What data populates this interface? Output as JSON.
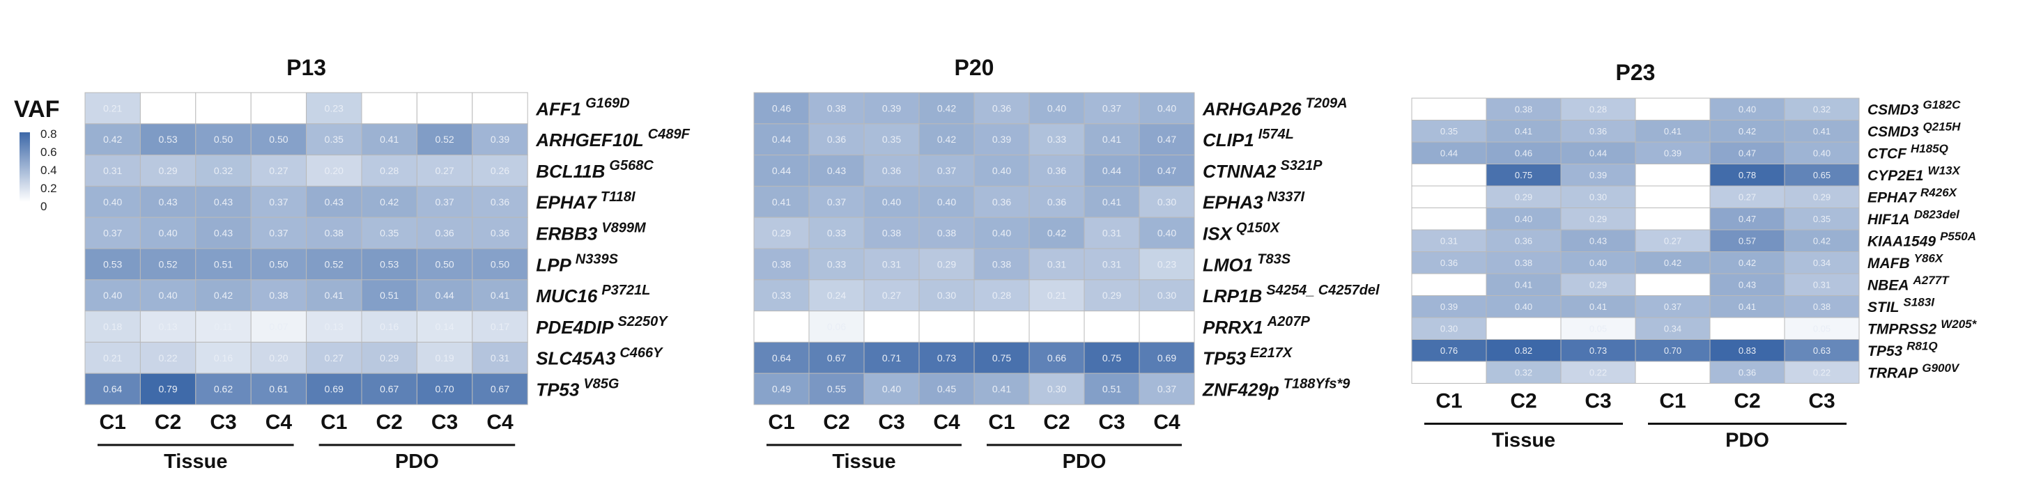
{
  "colors": {
    "low": "#ffffff",
    "high": "#3d68a8",
    "grid": "#b9b9b9",
    "text_on_light": "#e9eef6",
    "bracket": "#111111"
  },
  "legend": {
    "title": "VAF",
    "ticks": [
      "0.8",
      "0.6",
      "0.4",
      "0.2",
      "0"
    ]
  },
  "chart_data": [
    {
      "type": "heatmap",
      "title": "P13",
      "columns": [
        "C1",
        "C2",
        "C3",
        "C4",
        "C1",
        "C2",
        "C3",
        "C4"
      ],
      "groups": [
        {
          "label": "Tissue",
          "span": [
            0,
            3
          ]
        },
        {
          "label": "PDO",
          "span": [
            4,
            7
          ]
        }
      ],
      "rows": [
        {
          "gene": "AFF1",
          "mutation": "G169D",
          "values": [
            0.21,
            null,
            null,
            null,
            0.23,
            null,
            null,
            null
          ]
        },
        {
          "gene": "ARHGEF10L",
          "mutation": "C489F",
          "values": [
            0.42,
            0.53,
            0.5,
            0.5,
            0.35,
            0.41,
            0.52,
            0.39
          ]
        },
        {
          "gene": "BCL11B",
          "mutation": "G568C",
          "values": [
            0.31,
            0.29,
            0.32,
            0.27,
            0.2,
            0.28,
            0.27,
            0.26
          ]
        },
        {
          "gene": "EPHA7",
          "mutation": "T118I",
          "values": [
            0.4,
            0.43,
            0.43,
            0.37,
            0.43,
            0.42,
            0.37,
            0.36
          ]
        },
        {
          "gene": "ERBB3",
          "mutation": "V899M",
          "values": [
            0.37,
            0.4,
            0.43,
            0.37,
            0.38,
            0.35,
            0.36,
            0.36
          ]
        },
        {
          "gene": "LPP",
          "mutation": "N339S",
          "values": [
            0.53,
            0.52,
            0.51,
            0.5,
            0.52,
            0.53,
            0.5,
            0.5
          ]
        },
        {
          "gene": "MUC16",
          "mutation": "P3721L",
          "values": [
            0.4,
            0.4,
            0.42,
            0.38,
            0.41,
            0.51,
            0.44,
            0.41
          ]
        },
        {
          "gene": "PDE4DIP",
          "mutation": "S2250Y",
          "values": [
            0.18,
            0.13,
            0.11,
            0.07,
            0.13,
            0.16,
            0.14,
            0.17
          ]
        },
        {
          "gene": "SLC45A3",
          "mutation": "C466Y",
          "values": [
            0.21,
            0.22,
            0.16,
            0.2,
            0.27,
            0.29,
            0.19,
            0.31
          ]
        },
        {
          "gene": "TP53",
          "mutation": "V85G",
          "values": [
            0.64,
            0.79,
            0.62,
            0.61,
            0.69,
            0.67,
            0.7,
            0.67
          ]
        }
      ]
    },
    {
      "type": "heatmap",
      "title": "P20",
      "columns": [
        "C1",
        "C2",
        "C3",
        "C4",
        "C1",
        "C2",
        "C3",
        "C4"
      ],
      "groups": [
        {
          "label": "Tissue",
          "span": [
            0,
            3
          ]
        },
        {
          "label": "PDO",
          "span": [
            4,
            7
          ]
        }
      ],
      "rows": [
        {
          "gene": "ARHGAP26",
          "mutation": "T209A",
          "values": [
            0.46,
            0.38,
            0.39,
            0.42,
            0.36,
            0.4,
            0.37,
            0.4
          ]
        },
        {
          "gene": "CLIP1",
          "mutation": "I574L",
          "values": [
            0.44,
            0.36,
            0.35,
            0.42,
            0.39,
            0.33,
            0.41,
            0.47
          ]
        },
        {
          "gene": "CTNNA2",
          "mutation": "S321P",
          "values": [
            0.44,
            0.43,
            0.36,
            0.37,
            0.4,
            0.36,
            0.44,
            0.47
          ]
        },
        {
          "gene": "EPHA3",
          "mutation": "N337I",
          "values": [
            0.41,
            0.37,
            0.4,
            0.4,
            0.36,
            0.36,
            0.41,
            0.3
          ]
        },
        {
          "gene": "ISX",
          "mutation": "Q150X",
          "values": [
            0.29,
            0.33,
            0.38,
            0.38,
            0.4,
            0.42,
            0.31,
            0.4
          ]
        },
        {
          "gene": "LMO1",
          "mutation": "T83S",
          "values": [
            0.38,
            0.33,
            0.31,
            0.29,
            0.38,
            0.31,
            0.31,
            0.23
          ]
        },
        {
          "gene": "LRP1B",
          "mutation": "S4254_ C4257del",
          "values": [
            0.33,
            0.24,
            0.27,
            0.3,
            0.28,
            0.21,
            0.29,
            0.3
          ]
        },
        {
          "gene": "PRRX1",
          "mutation": "A207P",
          "values": [
            null,
            0.06,
            null,
            null,
            null,
            null,
            null,
            null
          ]
        },
        {
          "gene": "TP53",
          "mutation": "E217X",
          "values": [
            0.64,
            0.67,
            0.71,
            0.73,
            0.75,
            0.66,
            0.75,
            0.69
          ]
        },
        {
          "gene": "ZNF429p",
          "mutation": "T188Yfs*9",
          "values": [
            0.49,
            0.55,
            0.4,
            0.45,
            0.41,
            0.3,
            0.51,
            0.37
          ]
        }
      ]
    },
    {
      "type": "heatmap",
      "title": "P23",
      "columns": [
        "C1",
        "C2",
        "C3",
        "C1",
        "C2",
        "C3"
      ],
      "groups": [
        {
          "label": "Tissue",
          "span": [
            0,
            2
          ]
        },
        {
          "label": "PDO",
          "span": [
            3,
            5
          ]
        }
      ],
      "rows": [
        {
          "gene": "CSMD3",
          "mutation": "G182C",
          "values": [
            null,
            0.38,
            0.28,
            null,
            0.4,
            0.32
          ]
        },
        {
          "gene": "CSMD3",
          "mutation": "Q215H",
          "values": [
            0.35,
            0.41,
            0.36,
            0.41,
            0.42,
            0.41
          ]
        },
        {
          "gene": "CTCF",
          "mutation": "H185Q",
          "values": [
            0.44,
            0.46,
            0.44,
            0.39,
            0.47,
            0.4
          ]
        },
        {
          "gene": "CYP2E1",
          "mutation": "W13X",
          "values": [
            null,
            0.75,
            0.39,
            null,
            0.78,
            0.65
          ]
        },
        {
          "gene": "EPHA7",
          "mutation": "R426X",
          "values": [
            null,
            0.29,
            0.3,
            null,
            0.27,
            0.29
          ]
        },
        {
          "gene": "HIF1A",
          "mutation": "D823del",
          "values": [
            null,
            0.4,
            0.29,
            null,
            0.47,
            0.35
          ]
        },
        {
          "gene": "KIAA1549",
          "mutation": "P550A",
          "values": [
            0.31,
            0.36,
            0.43,
            0.27,
            0.57,
            0.42
          ]
        },
        {
          "gene": "MAFB",
          "mutation": "Y86X",
          "values": [
            0.36,
            0.38,
            0.4,
            0.42,
            0.42,
            0.34
          ]
        },
        {
          "gene": "NBEA",
          "mutation": "A277T",
          "values": [
            null,
            0.41,
            0.29,
            null,
            0.43,
            0.31
          ]
        },
        {
          "gene": "STIL",
          "mutation": "S183I",
          "values": [
            0.39,
            0.4,
            0.41,
            0.37,
            0.41,
            0.38
          ]
        },
        {
          "gene": "TMPRSS2",
          "mutation": "W205*",
          "values": [
            0.3,
            null,
            0.05,
            0.34,
            null,
            0.05
          ]
        },
        {
          "gene": "TP53",
          "mutation": "R81Q",
          "values": [
            0.76,
            0.82,
            0.73,
            0.7,
            0.83,
            0.63
          ]
        },
        {
          "gene": "TRRAP",
          "mutation": "G900V",
          "values": [
            null,
            0.32,
            0.22,
            null,
            0.36,
            0.22
          ]
        }
      ]
    }
  ]
}
